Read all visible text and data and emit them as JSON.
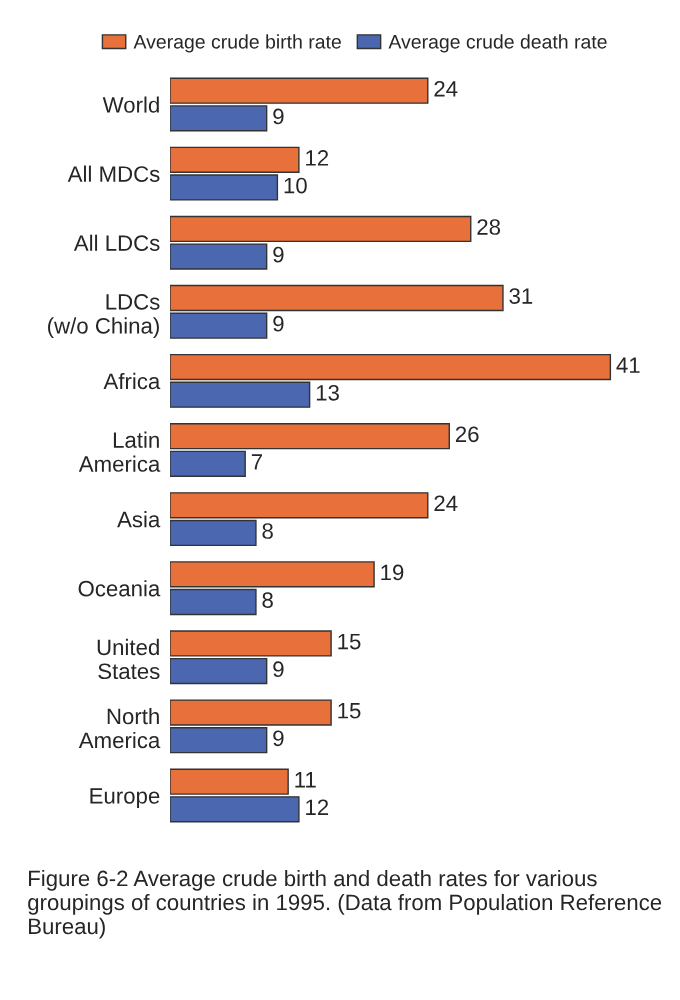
{
  "chart_data": {
    "type": "bar",
    "orientation": "horizontal",
    "categories": [
      "World",
      "All MDCs",
      "All LDCs",
      "LDCs\n(w/o China)",
      "Africa",
      "Latin\nAmerica",
      "Asia",
      "Oceania",
      "United\nStates",
      "North\nAmerica",
      "Europe"
    ],
    "series": [
      {
        "name": "Average crude birth rate",
        "color": "#e8703a",
        "values": [
          24,
          12,
          28,
          31,
          41,
          26,
          24,
          19,
          15,
          15,
          11
        ]
      },
      {
        "name": "Average crude death rate",
        "color": "#4a67b0",
        "values": [
          9,
          10,
          9,
          9,
          13,
          7,
          8,
          8,
          9,
          9,
          12
        ]
      }
    ],
    "tick_labels": "y",
    "data_labels": true,
    "legend": "top",
    "grid": false,
    "annotations": [
      "Figure 6-2 Average crude birth and death rates for various groupings of countries in 1995. (Data from Population Reference Bureau)"
    ]
  }
}
